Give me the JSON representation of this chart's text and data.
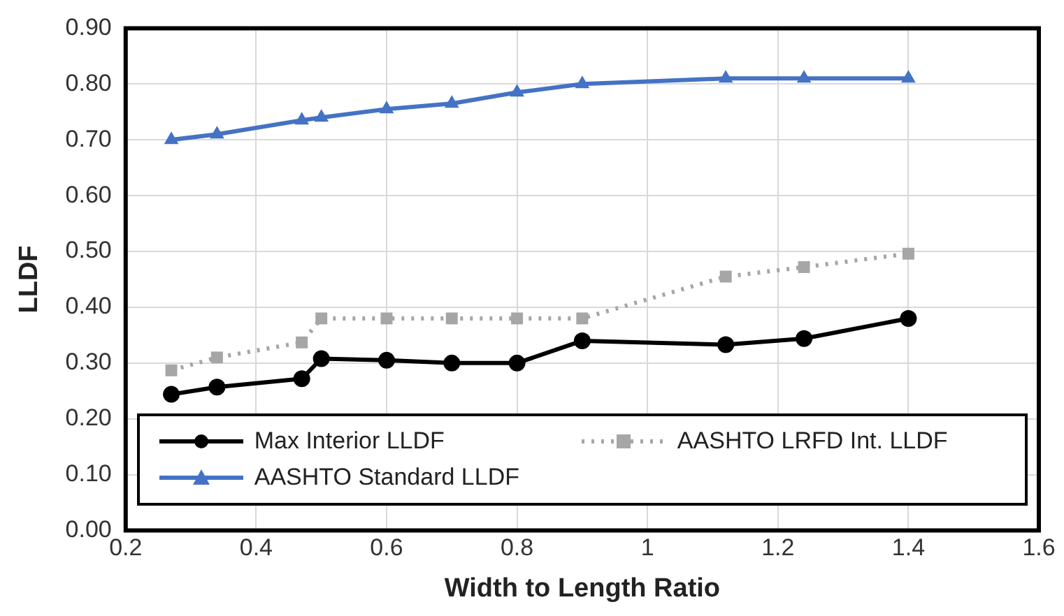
{
  "chart_data": {
    "type": "line",
    "xlabel": "Width to Length Ratio",
    "ylabel": "LLDF",
    "x": [
      0.27,
      0.34,
      0.47,
      0.5,
      0.6,
      0.7,
      0.8,
      0.9,
      1.12,
      1.24,
      1.4
    ],
    "xlim": [
      0.2,
      1.6
    ],
    "xticks": [
      0.2,
      0.4,
      0.6,
      0.8,
      1,
      1.2,
      1.4,
      1.6
    ],
    "ylim": [
      0,
      0.9
    ],
    "yticks": [
      {
        "value": 0,
        "label": "0.00"
      },
      {
        "value": 0.1,
        "label": "0.10"
      },
      {
        "value": 0.2,
        "label": "0.20"
      },
      {
        "value": 0.3,
        "label": "0.30"
      },
      {
        "value": 0.4,
        "label": "0.40"
      },
      {
        "value": 0.5,
        "label": "0.50"
      },
      {
        "value": 0.6,
        "label": "0.60"
      },
      {
        "value": 0.7,
        "label": "0.70"
      },
      {
        "value": 0.8,
        "label": "0.80"
      },
      {
        "value": 0.9,
        "label": "0.90"
      }
    ],
    "grid": true,
    "legend": "bottom",
    "series": [
      {
        "name": "Max Interior LLDF",
        "color": "#000000",
        "marker": "circle",
        "line_style": "solid",
        "values": [
          0.244,
          0.257,
          0.272,
          0.308,
          0.305,
          0.3,
          0.3,
          0.34,
          0.333,
          0.344,
          0.38
        ]
      },
      {
        "name": "AASHTO LRFD Int. LLDF",
        "color": "#a6a6a6",
        "marker": "square",
        "line_style": "dotted",
        "values": [
          0.287,
          0.31,
          0.337,
          0.38,
          0.38,
          0.38,
          0.38,
          0.38,
          0.455,
          0.472,
          0.496
        ]
      },
      {
        "name": "AASHTO Standard LLDF",
        "color": "#4472c4",
        "marker": "triangle",
        "line_style": "solid",
        "values": [
          0.7,
          0.71,
          0.735,
          0.74,
          0.755,
          0.765,
          0.785,
          0.8,
          0.81,
          0.81,
          0.81
        ]
      }
    ]
  }
}
